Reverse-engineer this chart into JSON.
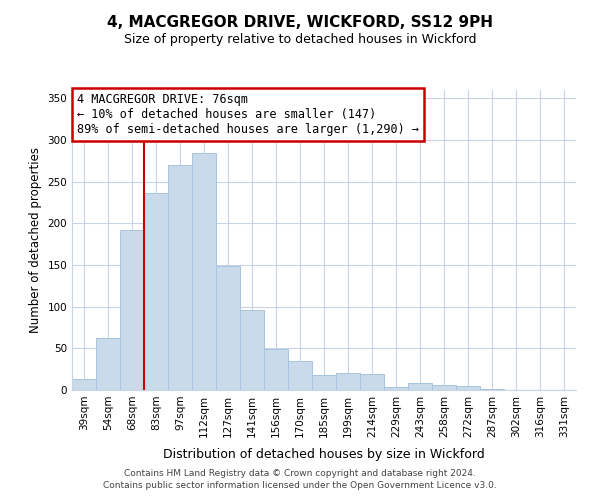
{
  "title": "4, MACGREGOR DRIVE, WICKFORD, SS12 9PH",
  "subtitle": "Size of property relative to detached houses in Wickford",
  "xlabel": "Distribution of detached houses by size in Wickford",
  "ylabel": "Number of detached properties",
  "bar_labels": [
    "39sqm",
    "54sqm",
    "68sqm",
    "83sqm",
    "97sqm",
    "112sqm",
    "127sqm",
    "141sqm",
    "156sqm",
    "170sqm",
    "185sqm",
    "199sqm",
    "214sqm",
    "229sqm",
    "243sqm",
    "258sqm",
    "272sqm",
    "287sqm",
    "302sqm",
    "316sqm",
    "331sqm"
  ],
  "bar_values": [
    13,
    62,
    192,
    237,
    270,
    284,
    149,
    96,
    49,
    35,
    18,
    20,
    19,
    4,
    8,
    6,
    5,
    1,
    0,
    0,
    0
  ],
  "bar_color": "#c9daea",
  "bar_edge_color": "#a8c4de",
  "vline_color": "#cc0000",
  "vline_pos": 2.5,
  "annotation_title": "4 MACGREGOR DRIVE: 76sqm",
  "annotation_line1": "← 10% of detached houses are smaller (147)",
  "annotation_line2": "89% of semi-detached houses are larger (1,290) →",
  "annotation_box_color": "#ffffff",
  "annotation_box_edge": "#cc0000",
  "ylim": [
    0,
    360
  ],
  "yticks": [
    0,
    50,
    100,
    150,
    200,
    250,
    300,
    350
  ],
  "grid_color": "#c8d4e4",
  "footer1": "Contains HM Land Registry data © Crown copyright and database right 2024.",
  "footer2": "Contains public sector information licensed under the Open Government Licence v3.0."
}
